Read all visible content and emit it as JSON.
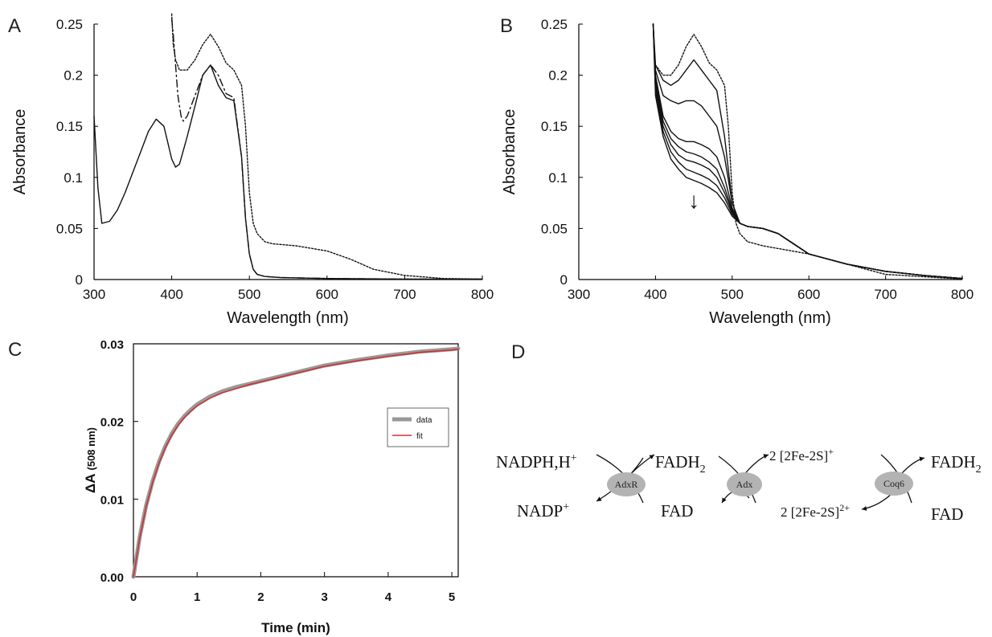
{
  "chart_data": [
    {
      "panel": "A",
      "type": "line",
      "xlabel": "Wavelength (nm)",
      "ylabel": "Absorbance",
      "xlim": [
        300,
        800
      ],
      "ylim": [
        0,
        0.25
      ],
      "xticks": [
        "300",
        "400",
        "500",
        "600",
        "700",
        "800"
      ],
      "yticks": [
        "0",
        "0.05",
        "0.1",
        "0.15",
        "0.2",
        "0.25"
      ],
      "series": [
        {
          "style": "solid",
          "x": [
            300,
            305,
            310,
            320,
            330,
            340,
            350,
            360,
            370,
            380,
            390,
            400,
            405,
            410,
            420,
            430,
            440,
            450,
            460,
            470,
            480,
            490,
            495,
            500,
            505,
            510,
            520,
            540,
            600,
            700,
            800
          ],
          "y": [
            0.16,
            0.09,
            0.055,
            0.057,
            0.068,
            0.085,
            0.105,
            0.125,
            0.145,
            0.157,
            0.15,
            0.118,
            0.11,
            0.113,
            0.14,
            0.17,
            0.2,
            0.21,
            0.19,
            0.178,
            0.175,
            0.12,
            0.06,
            0.025,
            0.01,
            0.005,
            0.003,
            0.002,
            0.001,
            0.0005,
            0.0005
          ]
        },
        {
          "style": "dashed",
          "x": [
            400,
            402,
            405,
            408,
            412,
            415,
            420,
            430,
            440,
            450,
            460,
            470,
            480,
            490,
            495,
            500,
            505,
            510,
            520,
            540,
            600,
            700,
            800
          ],
          "y": [
            0.255,
            0.24,
            0.21,
            0.18,
            0.16,
            0.155,
            0.16,
            0.18,
            0.2,
            0.21,
            0.2,
            0.182,
            0.178,
            0.12,
            0.06,
            0.025,
            0.01,
            0.005,
            0.003,
            0.002,
            0.001,
            0.0005,
            0.0005
          ]
        },
        {
          "style": "dotted",
          "x": [
            400,
            402,
            405,
            410,
            420,
            430,
            440,
            450,
            460,
            470,
            480,
            490,
            495,
            500,
            505,
            510,
            520,
            530,
            560,
            600,
            630,
            660,
            700,
            750,
            800
          ],
          "y": [
            0.26,
            0.23,
            0.215,
            0.205,
            0.205,
            0.215,
            0.23,
            0.24,
            0.228,
            0.212,
            0.205,
            0.19,
            0.15,
            0.085,
            0.055,
            0.045,
            0.037,
            0.035,
            0.033,
            0.028,
            0.02,
            0.01,
            0.004,
            0.001,
            0.0005
          ]
        }
      ]
    },
    {
      "panel": "B",
      "type": "line",
      "xlabel": "Wavelength (nm)",
      "ylabel": "Absorbance",
      "xlim": [
        300,
        800
      ],
      "ylim": [
        0,
        0.25
      ],
      "xticks": [
        "300",
        "400",
        "500",
        "600",
        "700",
        "800"
      ],
      "yticks": [
        "0",
        "0.05",
        "0.1",
        "0.15",
        "0.2",
        "0.25"
      ],
      "annotation": "↓",
      "annotation_at": {
        "x": 450,
        "y": 0.07
      },
      "series": [
        {
          "style": "dotted",
          "x": [
            400,
            410,
            420,
            430,
            440,
            450,
            460,
            470,
            480,
            490,
            495,
            500,
            505,
            510,
            520,
            540,
            600,
            700,
            800
          ],
          "y": [
            0.21,
            0.2,
            0.2,
            0.21,
            0.228,
            0.24,
            0.228,
            0.212,
            0.205,
            0.19,
            0.15,
            0.085,
            0.055,
            0.045,
            0.037,
            0.033,
            0.025,
            0.005,
            0.0005
          ]
        },
        {
          "style": "solid",
          "x": [
            397,
            400,
            410,
            420,
            430,
            440,
            450,
            460,
            470,
            480,
            490,
            500,
            510,
            520,
            540,
            560,
            580,
            600,
            650,
            700,
            750,
            800
          ],
          "y": [
            0.25,
            0.21,
            0.195,
            0.19,
            0.195,
            0.205,
            0.215,
            0.205,
            0.195,
            0.185,
            0.14,
            0.075,
            0.055,
            0.052,
            0.05,
            0.045,
            0.035,
            0.025,
            0.015,
            0.008,
            0.004,
            0.001
          ]
        },
        {
          "style": "solid",
          "x": [
            397,
            400,
            410,
            420,
            430,
            440,
            450,
            460,
            470,
            480,
            490,
            500,
            510,
            520,
            540,
            560,
            580,
            600,
            650,
            700,
            750,
            800
          ],
          "y": [
            0.25,
            0.205,
            0.18,
            0.175,
            0.172,
            0.175,
            0.175,
            0.17,
            0.16,
            0.15,
            0.12,
            0.075,
            0.055,
            0.052,
            0.05,
            0.045,
            0.035,
            0.025,
            0.015,
            0.008,
            0.004,
            0.001
          ]
        },
        {
          "style": "solid",
          "x": [
            397,
            400,
            410,
            420,
            430,
            440,
            450,
            460,
            470,
            480,
            490,
            500,
            510,
            520,
            540,
            560,
            580,
            600,
            650,
            700,
            750,
            800
          ],
          "y": [
            0.25,
            0.2,
            0.16,
            0.145,
            0.138,
            0.135,
            0.135,
            0.132,
            0.128,
            0.12,
            0.1,
            0.07,
            0.055,
            0.052,
            0.05,
            0.045,
            0.035,
            0.025,
            0.015,
            0.008,
            0.004,
            0.001
          ]
        },
        {
          "style": "solid",
          "x": [
            397,
            400,
            410,
            420,
            430,
            440,
            450,
            460,
            470,
            480,
            490,
            500,
            510,
            520,
            540,
            560,
            580,
            600,
            650,
            700,
            750,
            800
          ],
          "y": [
            0.25,
            0.195,
            0.155,
            0.138,
            0.13,
            0.125,
            0.123,
            0.12,
            0.115,
            0.108,
            0.09,
            0.068,
            0.055,
            0.052,
            0.05,
            0.045,
            0.035,
            0.025,
            0.015,
            0.008,
            0.004,
            0.001
          ]
        },
        {
          "style": "solid",
          "x": [
            397,
            400,
            410,
            420,
            430,
            440,
            450,
            460,
            470,
            480,
            490,
            500,
            510,
            520,
            540,
            560,
            580,
            600,
            650,
            700,
            750,
            800
          ],
          "y": [
            0.25,
            0.19,
            0.15,
            0.132,
            0.122,
            0.117,
            0.115,
            0.112,
            0.108,
            0.1,
            0.085,
            0.066,
            0.055,
            0.052,
            0.05,
            0.045,
            0.035,
            0.025,
            0.015,
            0.008,
            0.004,
            0.001
          ]
        },
        {
          "style": "solid",
          "x": [
            397,
            400,
            410,
            420,
            430,
            440,
            450,
            460,
            470,
            480,
            490,
            500,
            510,
            520,
            540,
            560,
            580,
            600,
            650,
            700,
            750,
            800
          ],
          "y": [
            0.25,
            0.185,
            0.145,
            0.125,
            0.115,
            0.108,
            0.105,
            0.102,
            0.098,
            0.092,
            0.08,
            0.064,
            0.055,
            0.052,
            0.05,
            0.045,
            0.035,
            0.025,
            0.015,
            0.008,
            0.004,
            0.001
          ]
        },
        {
          "style": "solid",
          "x": [
            397,
            400,
            410,
            420,
            430,
            440,
            450,
            460,
            470,
            480,
            490,
            500,
            510,
            520,
            540,
            560,
            580,
            600,
            650,
            700,
            750,
            800
          ],
          "y": [
            0.25,
            0.18,
            0.14,
            0.118,
            0.108,
            0.1,
            0.097,
            0.094,
            0.09,
            0.085,
            0.075,
            0.062,
            0.055,
            0.052,
            0.05,
            0.045,
            0.035,
            0.025,
            0.015,
            0.008,
            0.004,
            0.001
          ]
        }
      ]
    },
    {
      "panel": "C",
      "type": "line",
      "xlabel": "Time (min)",
      "ylabel_main": "ΔA",
      "ylabel_sub": "(508 nm)",
      "xlim": [
        0,
        5.1
      ],
      "ylim": [
        0,
        0.03
      ],
      "xticks": [
        "0",
        "1",
        "2",
        "3",
        "4",
        "5"
      ],
      "yticks": [
        "0.00",
        "0.01",
        "0.02",
        "0.03"
      ],
      "legend": {
        "position": "right",
        "entries": [
          "data",
          "fit"
        ]
      },
      "series": [
        {
          "name": "data",
          "color": "#999999",
          "x": [
            0,
            0.1,
            0.2,
            0.3,
            0.4,
            0.5,
            0.6,
            0.7,
            0.8,
            0.9,
            1.0,
            1.2,
            1.4,
            1.6,
            1.8,
            2.0,
            2.5,
            3.0,
            3.5,
            4.0,
            4.5,
            5.0,
            5.1
          ],
          "y": [
            0,
            0.0052,
            0.0092,
            0.0123,
            0.0148,
            0.0168,
            0.0184,
            0.0197,
            0.0207,
            0.0215,
            0.0222,
            0.0232,
            0.0239,
            0.0244,
            0.0248,
            0.0252,
            0.0262,
            0.0272,
            0.0279,
            0.0285,
            0.029,
            0.0293,
            0.0294
          ]
        },
        {
          "name": "fit",
          "color": "#cc3333",
          "x": [
            0,
            0.1,
            0.2,
            0.3,
            0.4,
            0.5,
            0.6,
            0.7,
            0.8,
            0.9,
            1.0,
            1.2,
            1.4,
            1.6,
            1.8,
            2.0,
            2.5,
            3.0,
            3.5,
            4.0,
            4.5,
            5.0,
            5.1
          ],
          "y": [
            0,
            0.005,
            0.009,
            0.0121,
            0.0146,
            0.0166,
            0.0182,
            0.0195,
            0.0205,
            0.0213,
            0.022,
            0.023,
            0.0237,
            0.0242,
            0.0247,
            0.0251,
            0.0261,
            0.0271,
            0.0278,
            0.0284,
            0.0289,
            0.0292,
            0.0293
          ]
        }
      ]
    }
  ],
  "panels": {
    "A": {
      "letter": "A"
    },
    "B": {
      "letter": "B"
    },
    "C": {
      "letter": "C"
    },
    "D": {
      "letter": "D"
    }
  },
  "scheme": {
    "nadph": "NADPH,H",
    "nadph_sup": "+",
    "nadp": "NADP",
    "nadp_sup": "+",
    "fadh2_1": "FADH",
    "fadh2_1_sub": "2",
    "fad_1": "FAD",
    "fe_red_pre": "2 [2Fe-2S]",
    "fe_red_sup": "+",
    "fe_ox_pre": "2 [2Fe-2S]",
    "fe_ox_sup": "2+",
    "fadh2_2": "FADH",
    "fadh2_2_sub": "2",
    "fad_2": "FAD",
    "enzymes": [
      "AdxR",
      "Adx",
      "Coq6"
    ],
    "enzyme_fill": "#b3b3b3"
  }
}
